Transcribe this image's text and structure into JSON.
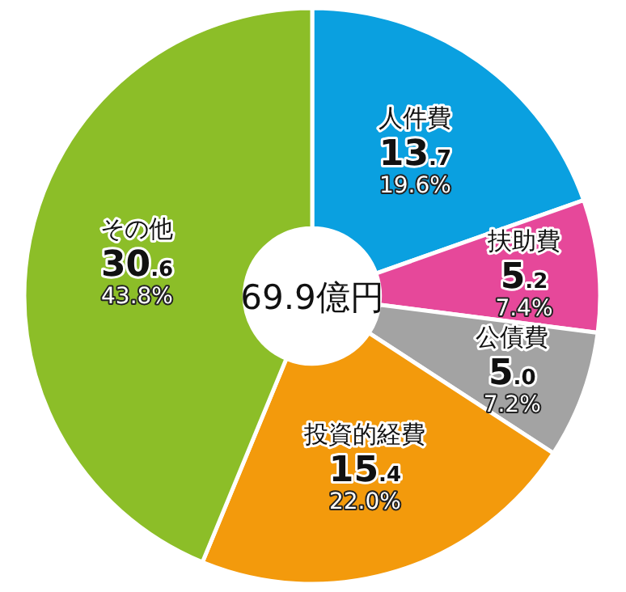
{
  "chart_data": {
    "type": "donut",
    "categories": [
      "人件費",
      "扶助費",
      "公債費",
      "投資的経費",
      "その他"
    ],
    "values": [
      13.7,
      5.2,
      5.0,
      15.4,
      30.6
    ],
    "colors": [
      "#0aa0e0",
      "#e6489a",
      "#a3a3a3",
      "#f39a0c",
      "#8cbe28"
    ],
    "value_labels": [
      "13.7\n19.6%",
      "5.2\n7.4%",
      "5.0\n7.2%",
      "15.4\n22.0%",
      "30.6\n43.8%"
    ],
    "annotations": [
      "69.9億円"
    ]
  }
}
